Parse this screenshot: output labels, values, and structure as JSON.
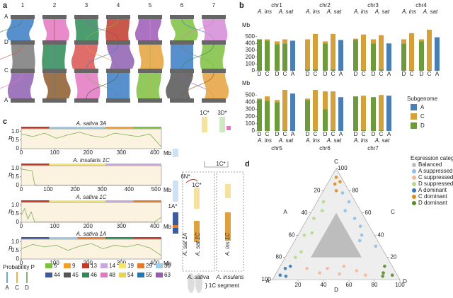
{
  "panel_a": {
    "label": "a",
    "columns": [
      "1",
      "2",
      "3",
      "4",
      "5",
      "6",
      "7"
    ],
    "rows": [
      "A",
      "D",
      "C",
      "A"
    ],
    "colors": [
      [
        "#3b7dc4",
        "#7a7a7a",
        "#8e5fb0"
      ],
      [
        "#e377c2",
        "#2e8b57",
        "#8b5a2b"
      ],
      [
        "#2e8b57",
        "#d9534f",
        "#e377c2"
      ],
      [
        "#c0392b",
        "#8e5fb0",
        "#3b7dc4"
      ],
      [
        "#9b59b6",
        "#e6a23c",
        "#7fbf3f"
      ],
      [
        "#7fbf3f",
        "#3b7dc4",
        "#555555"
      ],
      [
        "#d38bd6",
        "#7fbf3f",
        "#e6a23c"
      ]
    ]
  },
  "panel_b": {
    "label": "b",
    "unit": "Mb",
    "ylim": [
      0,
      600
    ],
    "yticks": [
      0,
      100,
      200,
      300,
      400,
      500
    ],
    "groups": [
      "A. ins",
      "A. sat"
    ],
    "bar_labels": [
      "D",
      "C",
      "D",
      "C",
      "A"
    ],
    "legend_title": "Subgenome",
    "series": [
      {
        "name": "A",
        "color": "#4a7fb5"
      },
      {
        "name": "C",
        "color": "#d4a03c"
      },
      {
        "name": "D",
        "color": "#6d9a3a"
      }
    ],
    "chromosomes": [
      {
        "name": "chr1",
        "bars": [
          [
            0,
            0,
            460
          ],
          [
            0,
            20,
            440
          ],
          [
            0,
            40,
            390
          ],
          [
            0,
            60,
            400
          ],
          [
            440,
            0,
            0
          ]
        ]
      },
      {
        "name": "chr2",
        "bars": [
          [
            0,
            440,
            20
          ],
          [
            0,
            520,
            20
          ],
          [
            0,
            30,
            400
          ],
          [
            0,
            520,
            20
          ],
          [
            450,
            0,
            0
          ]
        ]
      },
      {
        "name": "chr3",
        "bars": [
          [
            0,
            20,
            450
          ],
          [
            0,
            520,
            10
          ],
          [
            0,
            60,
            400
          ],
          [
            0,
            500,
            20
          ],
          [
            400,
            0,
            0
          ]
        ]
      },
      {
        "name": "chr4",
        "bars": [
          [
            0,
            60,
            400
          ],
          [
            0,
            540,
            10
          ],
          [
            0,
            30,
            430
          ],
          [
            0,
            590,
            10
          ],
          [
            490,
            0,
            0
          ]
        ]
      },
      {
        "name": "chr5",
        "bars": [
          [
            0,
            10,
            440
          ],
          [
            0,
            60,
            420
          ],
          [
            0,
            30,
            400
          ],
          [
            0,
            560,
            10
          ],
          [
            520,
            0,
            0
          ]
        ]
      },
      {
        "name": "chr6",
        "bars": [
          [
            0,
            20,
            430
          ],
          [
            0,
            560,
            10
          ],
          [
            0,
            250,
            300
          ],
          [
            0,
            540,
            10
          ],
          [
            470,
            0,
            0
          ]
        ]
      },
      {
        "name": "chr7",
        "bars": [
          [
            0,
            0,
            480
          ],
          [
            0,
            480,
            10
          ],
          [
            0,
            0,
            470
          ],
          [
            0,
            490,
            10
          ],
          [
            490,
            0,
            0
          ]
        ]
      }
    ]
  },
  "panel_c": {
    "label": "c",
    "unit": "Mb",
    "ylabel": "P",
    "ylim": [
      0,
      1.15
    ],
    "yticks": [
      0,
      0.5,
      {
        "value": 1,
        "label": "1.0"
      }
    ],
    "line_color": "#8db36b",
    "plots": [
      {
        "title": "A. sativa 3A",
        "xlim": [
          0,
          420
        ],
        "xticks": [
          0,
          100,
          200,
          300,
          400
        ],
        "x": [
          0,
          35,
          70,
          105,
          140,
          175,
          210,
          245,
          280,
          315,
          350,
          385,
          420
        ],
        "values": [
          0.85,
          0.7,
          0.9,
          0.6,
          0.8,
          0.95,
          0.75,
          0.65,
          0.9,
          0.8,
          0.7,
          0.85,
          0.1
        ],
        "strip": [
          "#c0392b",
          "#9ecbe8",
          "#9ecbe8",
          "#f0a030",
          "#7fbf3f"
        ]
      },
      {
        "title": "A. insularis 1C",
        "xlim": [
          0,
          520
        ],
        "xticks": [
          0,
          100,
          200,
          300,
          400,
          500
        ],
        "x": [
          0,
          20,
          40,
          50,
          60,
          100,
          200,
          300,
          400,
          500,
          520
        ],
        "values": [
          0.95,
          0.9,
          0.85,
          0.05,
          0.02,
          0.02,
          0.02,
          0.02,
          0.02,
          0.02,
          0.02
        ],
        "strip": [
          "#c0392b",
          "#f5e66b",
          "#f5e66b",
          "#c9a6e0",
          "#c9a6e0"
        ]
      },
      {
        "title": "A. sativa 1C",
        "xlim": [
          0,
          420
        ],
        "xticks": [
          0,
          100,
          200,
          300,
          400
        ],
        "x": [
          0,
          10,
          20,
          30,
          40,
          100,
          200,
          300,
          400,
          420
        ],
        "values": [
          0.4,
          0.8,
          0.2,
          0.6,
          0.03,
          0.02,
          0.02,
          0.02,
          0.02,
          0.3
        ],
        "strip": [
          "#c0392b",
          "#f5e66b",
          "#f5e66b",
          "#c9a6e0",
          "#e07b30"
        ]
      },
      {
        "title": "A. sativa 1A",
        "xlim": [
          0,
          420
        ],
        "xticks": [
          0,
          100,
          200,
          300,
          400
        ],
        "x": [
          0,
          35,
          70,
          105,
          140,
          175,
          210,
          245,
          280,
          315,
          350,
          385,
          420
        ],
        "values": [
          0.6,
          0.85,
          0.7,
          0.8,
          0.5,
          0.75,
          0.9,
          0.6,
          0.8,
          0.7,
          0.85,
          0.65,
          0.2
        ],
        "strip": [
          "#3d5a9e",
          "#9ecbe8",
          "#e07b30",
          "#2e8b57",
          "#c0392b"
        ]
      }
    ],
    "legend_title": "Probability P",
    "prob_lines": [
      {
        "name": "A",
        "color": "#6fa8dc"
      },
      {
        "name": "C",
        "color": "#e6b44c"
      },
      {
        "name": "D",
        "color": "#8db36b"
      }
    ],
    "segments": [
      {
        "name": "5",
        "color": "#7fbf3f"
      },
      {
        "name": "9",
        "color": "#f0a030"
      },
      {
        "name": "13",
        "color": "#c0392b"
      },
      {
        "name": "14",
        "color": "#c9a6e0"
      },
      {
        "name": "19",
        "color": "#f5e66b"
      },
      {
        "name": "29",
        "color": "#e07b30"
      },
      {
        "name": "30",
        "color": "#9ecbe8"
      },
      {
        "name": "44",
        "color": "#3d5a9e"
      },
      {
        "name": "45",
        "color": "#555555"
      },
      {
        "name": "46",
        "color": "#2e8b57"
      },
      {
        "name": "48",
        "color": "#e377c2"
      },
      {
        "name": "54",
        "color": "#e8d44d"
      },
      {
        "name": "55",
        "color": "#1f77b4"
      },
      {
        "name": "63",
        "color": "#9b59b6"
      }
    ],
    "schematic": [
      "1C*",
      "3D*",
      "1C*",
      "6N*",
      "1A*",
      "1C*",
      "A. sat 1A",
      "A. sat 1C",
      "A. ins 1C",
      "A. sativa",
      "A. insularis",
      "} 1C segment"
    ]
  },
  "panel_d": {
    "label": "d",
    "type": "ternary",
    "axes": [
      "A",
      "C",
      "D"
    ],
    "ticks": [
      20,
      40,
      60,
      80,
      100
    ],
    "legend_title": "Expression category",
    "series": [
      {
        "name": "Balanced",
        "color": "#bdbdbd",
        "values": [
          [
            60,
            20,
            20
          ],
          [
            20,
            60,
            20
          ],
          [
            20,
            20,
            60
          ]
        ]
      },
      {
        "name": "A suppressed",
        "color": "#8fbde6",
        "values": [
          [
            5,
            70,
            25
          ],
          [
            8,
            55,
            37
          ],
          [
            10,
            40,
            50
          ],
          [
            4,
            30,
            66
          ],
          [
            12,
            62,
            26
          ],
          [
            7,
            48,
            45
          ],
          [
            14,
            35,
            51
          ],
          [
            6,
            78,
            16
          ]
        ]
      },
      {
        "name": "C suppressed",
        "color": "#f4b69a",
        "values": [
          [
            45,
            5,
            50
          ],
          [
            30,
            8,
            62
          ],
          [
            60,
            6,
            34
          ],
          [
            38,
            12,
            50
          ],
          [
            52,
            10,
            38
          ],
          [
            25,
            4,
            71
          ],
          [
            68,
            10,
            22
          ]
        ]
      },
      {
        "name": "D suppressed",
        "color": "#b5d88a",
        "values": [
          [
            40,
            55,
            5
          ],
          [
            55,
            40,
            5
          ],
          [
            30,
            62,
            8
          ],
          [
            65,
            25,
            10
          ],
          [
            48,
            42,
            10
          ],
          [
            72,
            20,
            8
          ],
          [
            25,
            70,
            5
          ]
        ]
      },
      {
        "name": "A dominant",
        "color": "#3a78b5",
        "values": [
          [
            92,
            4,
            4
          ],
          [
            85,
            10,
            5
          ],
          [
            88,
            3,
            9
          ],
          [
            80,
            12,
            8
          ]
        ]
      },
      {
        "name": "C dominant",
        "color": "#d98c1f",
        "values": [
          [
            4,
            92,
            4
          ],
          [
            8,
            86,
            6
          ],
          [
            10,
            80,
            10
          ],
          [
            3,
            88,
            9
          ]
        ]
      },
      {
        "name": "D dominant",
        "color": "#5a8a2a",
        "values": [
          [
            4,
            4,
            92
          ],
          [
            10,
            6,
            84
          ],
          [
            6,
            12,
            82
          ],
          [
            12,
            3,
            85
          ]
        ]
      }
    ]
  }
}
